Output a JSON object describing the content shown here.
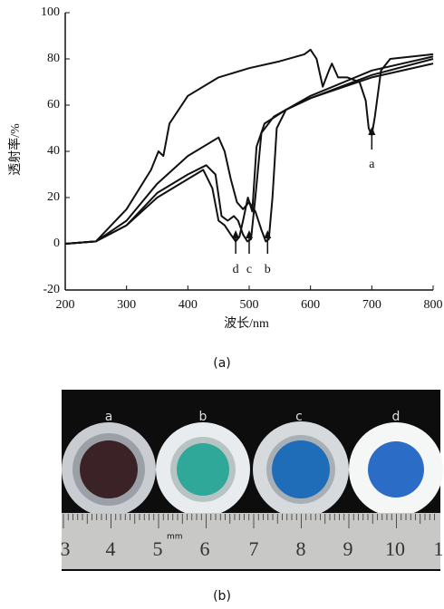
{
  "chart_data": {
    "type": "line",
    "ylabel": "透射率/%",
    "xlabel": "波长/nm",
    "xlim": [
      200,
      800
    ],
    "xticks": [
      200,
      300,
      400,
      500,
      600,
      700,
      800
    ],
    "ylim": [
      -20,
      100
    ],
    "yticks": [
      -20,
      0,
      20,
      40,
      60,
      80,
      100
    ],
    "color": "#111111",
    "series": [
      {
        "x": [
          200,
          250,
          300,
          340,
          352,
          360,
          370,
          400,
          450,
          500,
          550,
          590,
          600,
          610,
          620,
          630,
          635,
          645,
          660,
          680,
          690,
          695,
          700,
          705,
          715,
          730,
          800
        ],
        "values": [
          0,
          1,
          15,
          32,
          40,
          38,
          52,
          64,
          72,
          76,
          79,
          82,
          84,
          80,
          68,
          75,
          78,
          72,
          72,
          70,
          62,
          50,
          47,
          55,
          75,
          80,
          82
        ]
      },
      {
        "x": [
          200,
          250,
          300,
          350,
          400,
          450,
          460,
          470,
          480,
          490,
          500,
          510,
          520,
          527,
          532,
          538,
          545,
          560,
          600,
          700,
          800
        ],
        "values": [
          0,
          1,
          10,
          26,
          38,
          46,
          40,
          28,
          18,
          15,
          18,
          14,
          6,
          1,
          2,
          20,
          50,
          58,
          63,
          73,
          80
        ]
      },
      {
        "x": [
          200,
          250,
          300,
          350,
          400,
          430,
          445,
          455,
          465,
          475,
          482,
          490,
          497,
          503,
          510,
          520,
          540,
          600,
          700,
          800
        ],
        "values": [
          0,
          1,
          8,
          22,
          30,
          34,
          30,
          12,
          10,
          12,
          10,
          4,
          1,
          2,
          20,
          48,
          55,
          64,
          75,
          81
        ]
      },
      {
        "x": [
          200,
          250,
          300,
          350,
          400,
          425,
          440,
          450,
          460,
          470,
          478,
          484,
          490,
          498,
          505,
          512,
          525,
          560,
          600,
          700,
          800
        ],
        "values": [
          0,
          1,
          8,
          20,
          28,
          32,
          24,
          10,
          8,
          4,
          1,
          3,
          10,
          20,
          14,
          42,
          52,
          58,
          63,
          72,
          78
        ]
      }
    ],
    "annotations": [
      {
        "text": "a",
        "x": 700
      },
      {
        "text": "b",
        "x": 530
      },
      {
        "text": "c",
        "x": 500
      },
      {
        "text": "d",
        "x": 478
      }
    ]
  },
  "panel_labels": [
    "(a)",
    "(b)"
  ],
  "photo": {
    "sample_labels": [
      "a",
      "b",
      "c",
      "d"
    ],
    "ruler_numbers": [
      "3",
      "4",
      "5",
      "6",
      "7",
      "8",
      "9",
      "10",
      "1"
    ],
    "ruler_unit": "mm"
  }
}
